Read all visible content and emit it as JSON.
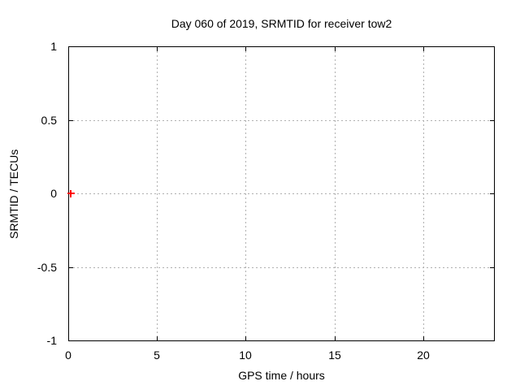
{
  "chart_data": {
    "type": "scatter",
    "title": "Day 060 of 2019, SRMTID for receiver tow2",
    "xlabel": "GPS time / hours",
    "ylabel": "SRMTID / TECUs",
    "xlim": [
      0,
      24
    ],
    "ylim": [
      -1,
      1
    ],
    "grid": true,
    "xticks": [
      {
        "value": 0,
        "label": "0"
      },
      {
        "value": 5,
        "label": "5"
      },
      {
        "value": 10,
        "label": "10"
      },
      {
        "value": 15,
        "label": "15"
      },
      {
        "value": 20,
        "label": "20"
      }
    ],
    "yticks": [
      {
        "value": 1,
        "label": "1"
      },
      {
        "value": 0.5,
        "label": "0.5"
      },
      {
        "value": 0,
        "label": "0"
      },
      {
        "value": -0.5,
        "label": "-0.5"
      },
      {
        "value": -1,
        "label": "-1"
      }
    ],
    "series": [
      {
        "name": "SRMTID",
        "marker": "plus",
        "color": "#ff0000",
        "points": [
          {
            "x": 0.14,
            "y": 0.0
          }
        ]
      }
    ],
    "colors": {
      "background": "#ffffff",
      "axis": "#000000",
      "grid": "#b0b0b0",
      "text": "#000000"
    }
  }
}
